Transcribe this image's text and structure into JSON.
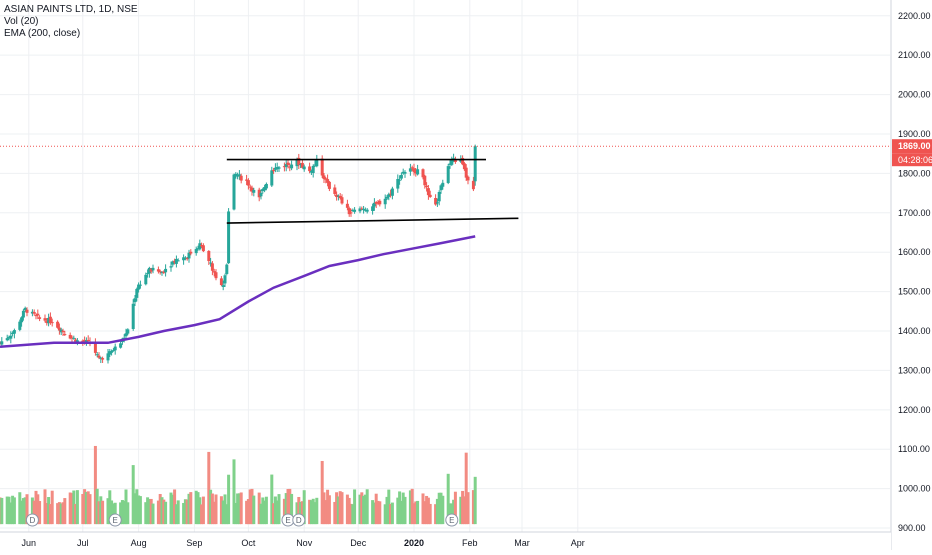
{
  "chart_data": {
    "type": "candlestick",
    "title": "ASIAN PAINTS LTD, 1D, NSE",
    "indicators": [
      "Vol (20)",
      "EMA (200, close)"
    ],
    "price_axis": {
      "ylim": [
        890,
        2240
      ],
      "ticks": [
        "2200.00",
        "2100.00",
        "2000.00",
        "1900.00",
        "1800.00",
        "1700.00",
        "1600.00",
        "1500.00",
        "1400.00",
        "1300.00",
        "1200.00",
        "1100.00",
        "1000.00",
        "900.00"
      ],
      "last_price_label": "1869.00",
      "countdown_label": "04:28:06"
    },
    "time_axis": {
      "labels": [
        "Jun",
        "Jul",
        "Aug",
        "Sep",
        "Oct",
        "Nov",
        "Dec",
        "2020",
        "Feb",
        "Mar",
        "Apr"
      ]
    },
    "anchors": [
      [
        "2019-05-16",
        1370
      ],
      [
        "2019-05-24",
        1400
      ],
      [
        "2019-05-30",
        1455
      ],
      [
        "2019-06-07",
        1430
      ],
      [
        "2019-06-14",
        1425
      ],
      [
        "2019-06-21",
        1395
      ],
      [
        "2019-06-28",
        1375
      ],
      [
        "2019-07-05",
        1370
      ],
      [
        "2019-07-10",
        1330
      ],
      [
        "2019-07-15",
        1340
      ],
      [
        "2019-07-22",
        1370
      ],
      [
        "2019-07-26",
        1400
      ],
      [
        "2019-07-31",
        1510
      ],
      [
        "2019-08-07",
        1555
      ],
      [
        "2019-08-14",
        1550
      ],
      [
        "2019-08-21",
        1580
      ],
      [
        "2019-08-28",
        1590
      ],
      [
        "2019-09-04",
        1620
      ],
      [
        "2019-09-10",
        1570
      ],
      [
        "2019-09-13",
        1530
      ],
      [
        "2019-09-17",
        1520
      ],
      [
        "2019-09-19",
        1570
      ],
      [
        "2019-09-20",
        1700
      ],
      [
        "2019-09-23",
        1800
      ],
      [
        "2019-09-30",
        1780
      ],
      [
        "2019-10-07",
        1735
      ],
      [
        "2019-10-14",
        1810
      ],
      [
        "2019-10-21",
        1820
      ],
      [
        "2019-10-28",
        1830
      ],
      [
        "2019-11-04",
        1805
      ],
      [
        "2019-11-08",
        1830
      ],
      [
        "2019-11-14",
        1770
      ],
      [
        "2019-11-20",
        1740
      ],
      [
        "2019-11-26",
        1700
      ],
      [
        "2019-12-04",
        1710
      ],
      [
        "2019-12-11",
        1720
      ],
      [
        "2019-12-18",
        1745
      ],
      [
        "2019-12-26",
        1805
      ],
      [
        "2020-01-01",
        1810
      ],
      [
        "2020-01-06",
        1795
      ],
      [
        "2020-01-09",
        1740
      ],
      [
        "2020-01-13",
        1715
      ],
      [
        "2020-01-17",
        1780
      ],
      [
        "2020-01-22",
        1835
      ],
      [
        "2020-01-27",
        1830
      ],
      [
        "2020-01-31",
        1780
      ],
      [
        "2020-02-03",
        1765
      ],
      [
        "2020-02-04",
        1869
      ]
    ],
    "ema_200": [
      [
        "2019-05-16",
        1360
      ],
      [
        "2019-06-15",
        1370
      ],
      [
        "2019-07-15",
        1370
      ],
      [
        "2019-08-01",
        1385
      ],
      [
        "2019-08-15",
        1400
      ],
      [
        "2019-09-01",
        1415
      ],
      [
        "2019-09-15",
        1430
      ],
      [
        "2019-10-01",
        1475
      ],
      [
        "2019-10-15",
        1510
      ],
      [
        "2019-11-01",
        1540
      ],
      [
        "2019-11-15",
        1565
      ],
      [
        "2019-12-01",
        1580
      ],
      [
        "2019-12-15",
        1595
      ],
      [
        "2020-01-01",
        1610
      ],
      [
        "2020-01-15",
        1622
      ],
      [
        "2020-02-04",
        1640
      ]
    ],
    "trendlines": [
      {
        "from": [
          "2019-09-19",
          1835
        ],
        "to": [
          "2020-02-10",
          1835
        ]
      },
      {
        "from": [
          "2019-09-19",
          1674
        ],
        "to": [
          "2020-02-28",
          1686
        ]
      }
    ],
    "volume_markers": [
      {
        "date": "2019-06-03",
        "label": "D"
      },
      {
        "date": "2019-07-19",
        "label": "E"
      },
      {
        "date": "2019-10-23",
        "label": "E"
      },
      {
        "date": "2019-10-29",
        "label": "D"
      },
      {
        "date": "2020-01-22",
        "label": "E"
      }
    ],
    "colors": {
      "up": "#26a69a",
      "down": "#ef5350",
      "vol_up": "#7fd18a",
      "vol_down": "#f28b82",
      "ema": "#6a2fbf",
      "trendline": "#000000",
      "last_price": "#ef5350"
    }
  }
}
